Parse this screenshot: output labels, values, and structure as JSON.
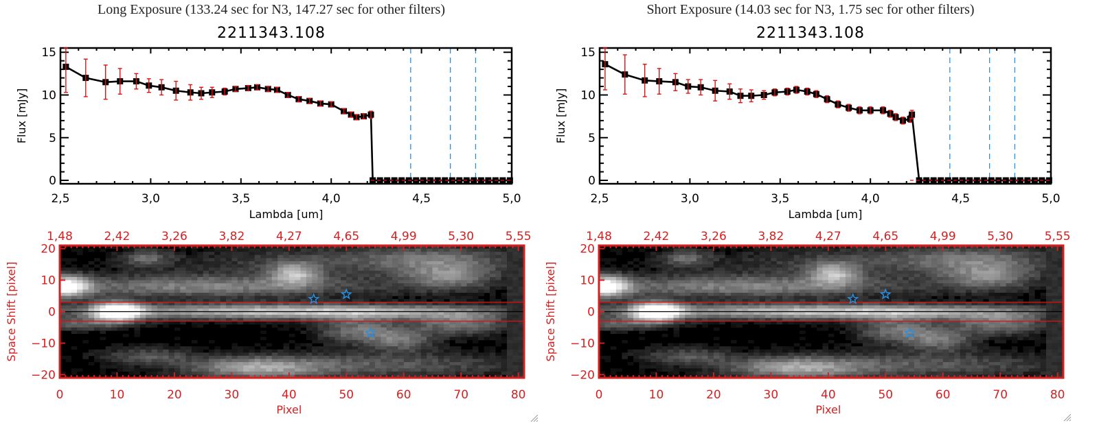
{
  "chart_data": [
    {
      "panel": "left",
      "exposure_title": "Long Exposure (133.24 sec for N3, 147.27 sec for other filters)",
      "object_id": "2211343.108",
      "spectrum": {
        "type": "line",
        "xlabel": "Lambda [um]",
        "ylabel": "Flux [mJy]",
        "xlim": [
          2.5,
          5.0
        ],
        "ylim": [
          -0.4,
          15.5
        ],
        "x_ticks": [
          "2.5",
          "3.0",
          "3.5",
          "4.0",
          "4.5",
          "5.0"
        ],
        "x_tick_values": [
          2.5,
          3.0,
          3.5,
          4.0,
          4.5,
          5.0
        ],
        "y_ticks": [
          "0",
          "5",
          "10",
          "15"
        ],
        "y_tick_values": [
          0,
          5,
          10,
          15
        ],
        "series": [
          {
            "name": "flux",
            "marker": "square",
            "color": "#000000",
            "errorbar_color": "#e01010",
            "x": [
              2.53,
              2.64,
              2.75,
              2.83,
              2.92,
              2.99,
              3.06,
              3.14,
              3.22,
              3.28,
              3.34,
              3.41,
              3.47,
              3.54,
              3.59,
              3.65,
              3.7,
              3.76,
              3.82,
              3.88,
              3.94,
              4.0,
              4.07,
              4.11,
              4.14,
              4.18,
              4.22,
              4.23,
              4.27,
              4.31,
              4.35,
              4.39,
              4.43,
              4.47,
              4.51,
              4.55,
              4.59,
              4.63,
              4.67,
              4.71,
              4.75,
              4.79,
              4.83,
              4.87,
              4.91,
              4.95,
              4.99
            ],
            "y": [
              13.3,
              12.0,
              11.5,
              11.6,
              11.6,
              11.1,
              10.9,
              10.5,
              10.3,
              10.2,
              10.3,
              10.4,
              10.7,
              10.8,
              10.9,
              10.7,
              10.6,
              10.0,
              9.5,
              9.3,
              9.0,
              8.9,
              8.1,
              7.7,
              7.4,
              7.5,
              7.7,
              0,
              0,
              0,
              0,
              0,
              0,
              0,
              0,
              0,
              0,
              0,
              0,
              0,
              0,
              0,
              0,
              0,
              0,
              0,
              0
            ],
            "yerr": [
              3.0,
              2.2,
              2.0,
              1.5,
              0.9,
              0.8,
              0.9,
              1.1,
              0.9,
              0.7,
              0.6,
              0.4,
              0.3,
              0.3,
              0.3,
              0.3,
              0.3,
              0.3,
              0.3,
              0.3,
              0.3,
              0.3,
              0.3,
              0.3,
              0.3,
              0.3,
              0.4,
              0,
              0,
              0,
              0,
              0,
              0,
              0,
              0,
              0,
              0,
              0,
              0,
              0,
              0,
              0,
              0,
              0,
              0,
              0,
              0
            ]
          }
        ],
        "zero_line": {
          "y": 0,
          "color": "#e01010",
          "style": "dashed"
        },
        "vertical_lines": {
          "x": [
            4.44,
            4.66,
            4.8
          ],
          "color": "#2a8ee0",
          "style": "dashed"
        }
      },
      "image": {
        "type": "heatmap",
        "xlabel": "Pixel",
        "ylabel": "Space Shift [pixel]",
        "xlim": [
          0,
          81
        ],
        "ylim": [
          -21,
          21
        ],
        "x_ticks": [
          "0",
          "10",
          "20",
          "30",
          "40",
          "50",
          "60",
          "70",
          "80"
        ],
        "x_tick_values": [
          0,
          10,
          20,
          30,
          40,
          50,
          60,
          70,
          80
        ],
        "top_ticks": [
          "1.48",
          "2.42",
          "3.26",
          "3.82",
          "4.27",
          "4.65",
          "4.99",
          "5.30",
          "5.55"
        ],
        "y_ticks": [
          "20",
          "10",
          "0",
          "-10",
          "-20"
        ],
        "y_tick_values": [
          20,
          10,
          0,
          -10,
          -20
        ],
        "aperture_lines": [
          3,
          -3
        ],
        "center_line": 0,
        "axis_color": "#d42020",
        "star_markers": [
          {
            "x": 44.3,
            "y": 4.0
          },
          {
            "x": 50.0,
            "y": 5.5
          },
          {
            "x": 54.2,
            "y": -6.8
          }
        ],
        "star_color": "#2a8ee0"
      }
    },
    {
      "panel": "right",
      "exposure_title": "Short Exposure (14.03 sec for N3, 1.75 sec for other filters)",
      "object_id": "2211343.108",
      "spectrum": {
        "type": "line",
        "xlabel": "Lambda [um]",
        "ylabel": "Flux [mJy]",
        "xlim": [
          2.5,
          5.0
        ],
        "ylim": [
          -0.4,
          15.5
        ],
        "x_ticks": [
          "2.5",
          "3.0",
          "3.5",
          "4.0",
          "4.5",
          "5.0"
        ],
        "x_tick_values": [
          2.5,
          3.0,
          3.5,
          4.0,
          4.5,
          5.0
        ],
        "y_ticks": [
          "0",
          "5",
          "10",
          "15"
        ],
        "y_tick_values": [
          0,
          5,
          10,
          15
        ],
        "series": [
          {
            "name": "flux",
            "marker": "square",
            "color": "#000000",
            "errorbar_color": "#e01010",
            "x": [
              2.53,
              2.64,
              2.75,
              2.83,
              2.92,
              2.99,
              3.06,
              3.14,
              3.22,
              3.28,
              3.34,
              3.41,
              3.47,
              3.54,
              3.59,
              3.65,
              3.7,
              3.76,
              3.82,
              3.88,
              3.94,
              4.0,
              4.07,
              4.11,
              4.14,
              4.18,
              4.22,
              4.23,
              4.27,
              4.31,
              4.35,
              4.39,
              4.43,
              4.47,
              4.51,
              4.55,
              4.59,
              4.63,
              4.67,
              4.71,
              4.75,
              4.79,
              4.83,
              4.87,
              4.91,
              4.95,
              4.99
            ],
            "y": [
              13.6,
              12.4,
              11.7,
              11.6,
              11.5,
              11.0,
              10.9,
              10.5,
              10.4,
              9.9,
              9.9,
              10.0,
              10.3,
              10.4,
              10.6,
              10.4,
              10.1,
              9.5,
              8.9,
              8.5,
              8.2,
              8.2,
              8.2,
              7.8,
              7.4,
              7.0,
              7.2,
              7.7,
              0,
              0,
              0,
              0,
              0,
              0,
              0,
              0,
              0,
              0,
              0,
              0,
              0,
              0,
              0,
              0,
              0,
              0,
              0
            ],
            "yerr": [
              3.0,
              2.3,
              1.9,
              1.5,
              1.0,
              0.8,
              0.9,
              1.2,
              0.9,
              0.8,
              0.7,
              0.5,
              0.4,
              0.4,
              0.4,
              0.4,
              0.4,
              0.4,
              0.4,
              0.4,
              0.4,
              0.4,
              0.4,
              0.4,
              0.4,
              0.4,
              0.4,
              0.5,
              0,
              0,
              0,
              0,
              0,
              0,
              0,
              0,
              0,
              0,
              0,
              0,
              0,
              0,
              0,
              0,
              0,
              0,
              0
            ]
          }
        ],
        "zero_line": {
          "y": 0,
          "color": "#e01010",
          "style": "dashed"
        },
        "vertical_lines": {
          "x": [
            4.44,
            4.66,
            4.8
          ],
          "color": "#2a8ee0",
          "style": "dashed"
        }
      },
      "image": {
        "type": "heatmap",
        "xlabel": "Pixel",
        "ylabel": "Space Shift [pixel]",
        "xlim": [
          0,
          81
        ],
        "ylim": [
          -21,
          21
        ],
        "x_ticks": [
          "0",
          "10",
          "20",
          "30",
          "40",
          "50",
          "60",
          "70",
          "80"
        ],
        "x_tick_values": [
          0,
          10,
          20,
          30,
          40,
          50,
          60,
          70,
          80
        ],
        "top_ticks": [
          "1.48",
          "2.42",
          "3.26",
          "3.82",
          "4.27",
          "4.65",
          "4.99",
          "5.30",
          "5.55"
        ],
        "y_ticks": [
          "20",
          "10",
          "0",
          "-10",
          "-20"
        ],
        "y_tick_values": [
          20,
          10,
          0,
          -10,
          -20
        ],
        "aperture_lines": [
          3,
          -3
        ],
        "center_line": 0,
        "axis_color": "#d42020",
        "star_markers": [
          {
            "x": 44.3,
            "y": 4.0
          },
          {
            "x": 50.0,
            "y": 5.5
          },
          {
            "x": 54.2,
            "y": -6.8
          }
        ],
        "star_color": "#2a8ee0"
      }
    }
  ],
  "panels": {
    "left": {
      "exposure_title": "Long Exposure (133.24 sec for N3, 147.27 sec for other filters)",
      "object_id": "2211343.108"
    },
    "right": {
      "exposure_title": "Short Exposure (14.03 sec for N3, 1.75 sec for other filters)",
      "object_id": "2211343.108"
    }
  },
  "icons": {
    "resize_grip": "resize-grip-icon"
  }
}
